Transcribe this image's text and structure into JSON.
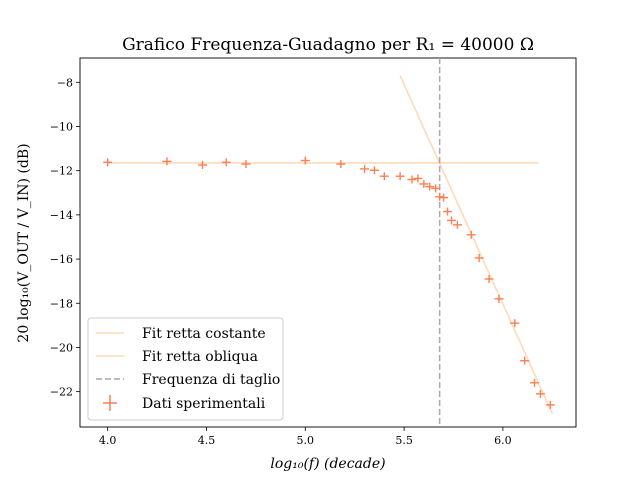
{
  "chart_data": {
    "type": "scatter",
    "title": "Grafico Frequenza-Guadagno per R₁ = 40000 Ω",
    "xlabel": "log₁₀(f) (decade)",
    "ylabel": "20 log₁₀(V_OUT / V_IN) (dB)",
    "xlim": [
      3.86,
      6.37
    ],
    "ylim": [
      -23.6,
      -6.9
    ],
    "x_ticks": [
      4.0,
      4.5,
      5.0,
      5.5,
      6.0
    ],
    "x_tick_labels": [
      "4.0",
      "4.5",
      "5.0",
      "5.5",
      "6.0"
    ],
    "y_ticks": [
      -22,
      -20,
      -18,
      -16,
      -14,
      -12,
      -10,
      -8
    ],
    "y_tick_labels": [
      "−22",
      "−20",
      "−18",
      "−16",
      "−14",
      "−12",
      "−10",
      "−8"
    ],
    "grid": false,
    "legend_position": "lower-left",
    "colors": {
      "data": "#ff7f50",
      "fit": "#ffdab9",
      "cutoff": "#a9a9a9"
    },
    "series": [
      {
        "name": "Fit retta costante",
        "kind": "line",
        "x": [
          4.0,
          6.18
        ],
        "y": [
          -11.65,
          -11.65
        ]
      },
      {
        "name": "Fit retta obliqua",
        "kind": "line",
        "x": [
          5.48,
          6.25
        ],
        "y": [
          -7.7,
          -23.0
        ]
      },
      {
        "name": "Frequenza di taglio",
        "kind": "vline",
        "x": [
          5.68
        ]
      },
      {
        "name": "Dati sperimentali",
        "kind": "errorbar",
        "x": [
          4.0,
          4.3,
          4.48,
          4.6,
          4.7,
          5.0,
          5.18,
          5.3,
          5.35,
          5.4,
          5.48,
          5.54,
          5.57,
          5.6,
          5.63,
          5.66,
          5.68,
          5.7,
          5.72,
          5.74,
          5.77,
          5.84,
          5.88,
          5.93,
          5.98,
          6.06,
          6.11,
          6.16,
          6.19,
          6.24
        ],
        "y": [
          -11.62,
          -11.58,
          -11.74,
          -11.62,
          -11.7,
          -11.54,
          -11.7,
          -11.92,
          -11.98,
          -12.25,
          -12.25,
          -12.4,
          -12.35,
          -12.6,
          -12.72,
          -12.8,
          -13.18,
          -13.22,
          -13.85,
          -14.25,
          -14.45,
          -14.9,
          -15.95,
          -16.9,
          -17.8,
          -18.9,
          -20.6,
          -21.6,
          -22.1,
          -22.6
        ]
      }
    ]
  }
}
